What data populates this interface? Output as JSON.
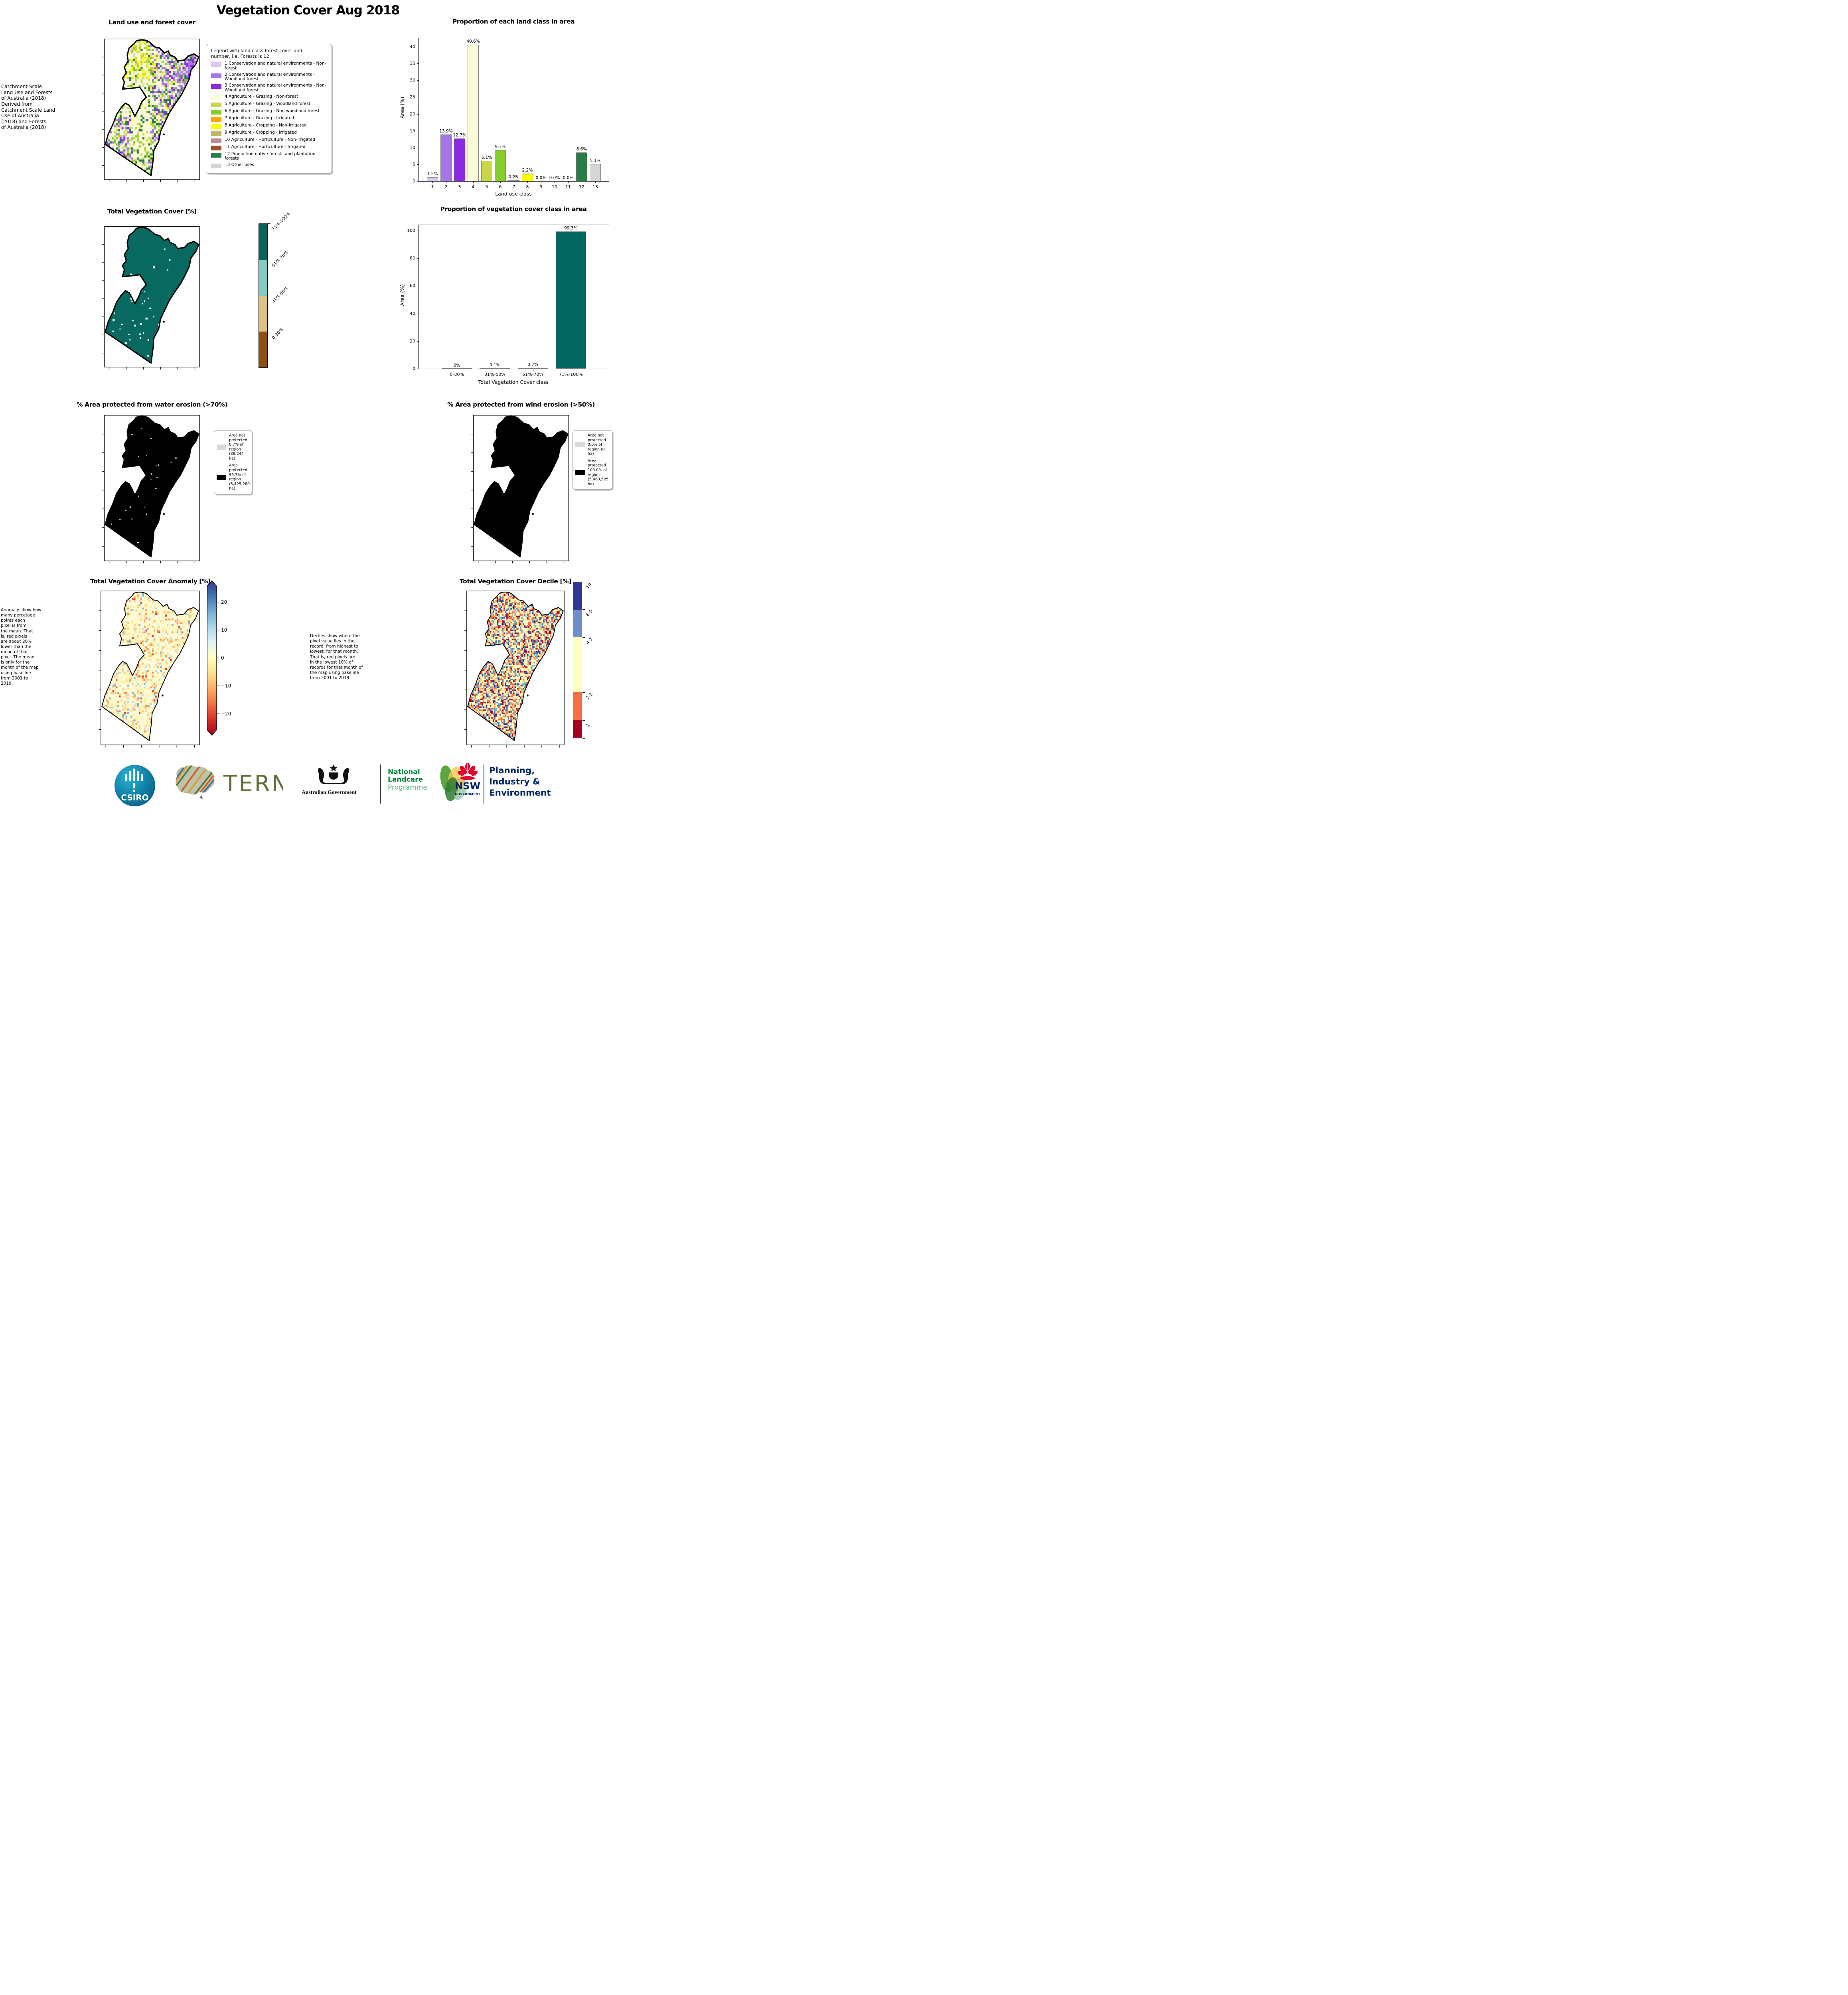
{
  "page_title": "Vegetation Cover Aug 2018",
  "panels": {
    "land_use": {
      "title": "Land use and forest cover",
      "side_note": " Catchment Scale\nLand Use and Forests\nof Australia (2018)\nDerived from\nCatchment Scale Land\nUse of Australia\n(2018) and Forests\nof Australia (2018)",
      "legend_title": "Legend with land class forest cover and\nnumber, i.e. Forests is 12",
      "legend_items": [
        {
          "color": "#dcc7ef",
          "label": "1 Conservation and natural environments - Non-forest"
        },
        {
          "color": "#a875e8",
          "label": "2 Conservation and natural environments - Woodland forest"
        },
        {
          "color": "#8a2be2",
          "label": "3 Conservation and natural environments - Non-Woodland forest"
        },
        {
          "color": "#fbfbd8",
          "label": "4 Agriculture - Grazing - Non-forest"
        },
        {
          "color": "#c9d648",
          "label": "5 Agriculture - Grazing - Woodland forest"
        },
        {
          "color": "#85cd27",
          "label": "6 Agriculture - Grazing - Non-woodland forest"
        },
        {
          "color": "#ffa500",
          "label": "7 Agriculture - Grazing - Irrigated"
        },
        {
          "color": "#ffff00",
          "label": "8 Agriculture - Cropping - Non-irrigated"
        },
        {
          "color": "#bdb76b",
          "label": "9 Agriculture - Cropping - Irrigated"
        },
        {
          "color": "#bc8f8f",
          "label": "10 Agriculture - Horticulture - Non-irrigated"
        },
        {
          "color": "#a0522d",
          "label": "11 Agriculture - Horticulture - Irrigated"
        },
        {
          "color": "#287d46",
          "label": "12 Production native forests and plantation forests"
        },
        {
          "color": "#d6d6d6",
          "label": "13 Other uses"
        }
      ]
    },
    "veg_cover": {
      "title": "Total Vegetation Cover [%]",
      "map_color": "#07695f",
      "colorbar": [
        {
          "label": "71%-100%",
          "color": "#01665e"
        },
        {
          "label": "51%-70%",
          "color": "#80cdc1"
        },
        {
          "label": "31%-50%",
          "color": "#dfc27d"
        },
        {
          "label": "0-30%",
          "color": "#8c510a"
        }
      ]
    },
    "water": {
      "title": "% Area protected from water erosion (>70%)",
      "legend": [
        {
          "color": "#d9d9d9",
          "label": "Area not protected 0.7% of region (38,244 ha)"
        },
        {
          "color": "#000000",
          "label": "Area protected 99.3% of region (5,425,280 ha)"
        }
      ]
    },
    "wind": {
      "title": "% Area protected from wind erosion (>50%)",
      "legend": [
        {
          "color": "#d9d9d9",
          "label": "Area not protected 0.0% of region (0 ha)"
        },
        {
          "color": "#000000",
          "label": "Area protected 100.0% of region (5,463,525 ha)"
        }
      ]
    },
    "anomaly": {
      "title": "Total Vegetation Cover Anomaly [%]",
      "note": "Anomaly show how\nmany percetage\npoints each\npixel is from\nthe mean. That\nis, red pixels\nare about 20%\nlower than the\nmean of that\npixel. The mean\nis only for the\nmonth of the map\nusing baseline\nfrom 2001 to\n2019.",
      "colorbar_ticks": [
        {
          "label": "20",
          "value": 20
        },
        {
          "label": "10",
          "value": 10
        },
        {
          "label": "0",
          "value": 0
        },
        {
          "label": "−10",
          "value": -10
        },
        {
          "label": "−20",
          "value": -20
        }
      ],
      "gradient": [
        "#313695",
        "#4575b4",
        "#74add1",
        "#abd9e9",
        "#e0f3f8",
        "#ffffbf",
        "#fee090",
        "#fdae61",
        "#f46d43",
        "#d73027",
        "#a50026"
      ]
    },
    "decile": {
      "title": "Total Vegetation Cover Decile [%]",
      "note": "Deciles show where the\npixel value lies in the\nrecord, from highest to\nlowest, for that month.\nThat is, red pixels are\nin the lowest 10% of\nrecords for that month of\nthe map using baseline\nfrom 2001 to 2019.",
      "colorbar": [
        {
          "label": "10",
          "color": "#313695",
          "frac": 0.176
        },
        {
          "label": "8-9",
          "color": "#6d8ec8",
          "frac": 0.179
        },
        {
          "label": "4-7",
          "color": "#ffffbf",
          "frac": 0.352
        },
        {
          "label": "2-3",
          "color": "#f46d43",
          "frac": 0.179
        },
        {
          "label": "1",
          "color": "#a50026",
          "frac": 0.114
        }
      ]
    }
  },
  "chart_data": [
    {
      "type": "bar",
      "title": "Proportion of each land class in area",
      "xlabel": "Land use class",
      "ylabel": "Area (%)",
      "categories": [
        "1",
        "2",
        "3",
        "4",
        "5",
        "6",
        "7",
        "8",
        "9",
        "10",
        "11",
        "12",
        "13"
      ],
      "values": [
        1.2,
        13.9,
        12.7,
        40.6,
        6.1,
        9.3,
        0.2,
        2.2,
        0.0,
        0.0,
        0.0,
        8.6,
        5.1
      ],
      "labels": [
        "1.2%",
        "13.9%",
        "12.7%",
        "40.6%",
        "6.1%",
        "9.3%",
        "0.2%",
        "2.2%",
        "0.0%",
        "0.0%",
        "0.0%",
        "8.6%",
        "5.1%"
      ],
      "bar_colors": [
        "#dcc7ef",
        "#a875e8",
        "#8a2be2",
        "#fbfbd8",
        "#c9d648",
        "#85cd27",
        "#ffa500",
        "#ffff00",
        "#bdb76b",
        "#bc8f8f",
        "#a0522d",
        "#287d46",
        "#d6d6d6"
      ],
      "yticks": [
        0,
        5,
        10,
        15,
        20,
        25,
        30,
        35,
        40
      ],
      "ylim": [
        0,
        42.5
      ],
      "grid": false,
      "legend_position": "none"
    },
    {
      "type": "bar",
      "title": "Proportion of vegetation cover class in area",
      "xlabel": "Total Vegetation Cover class",
      "ylabel": "Area (%)",
      "categories": [
        "0-30%",
        "31%-50%",
        "51%-70%",
        "71%-100%"
      ],
      "values": [
        0,
        0.1,
        0.7,
        99.3
      ],
      "labels": [
        "0%",
        "0.1%",
        "0.7%",
        "99.3%"
      ],
      "bar_colors": [
        "#8c510a",
        "#dfc27d",
        "#80cdc1",
        "#01665e"
      ],
      "yticks": [
        0,
        20,
        40,
        60,
        80,
        100
      ],
      "ylim": [
        0,
        104
      ],
      "grid": false,
      "legend_position": "none"
    }
  ],
  "footer": {
    "csiro_label": "CSIRO",
    "csiro_teal": "#0e7fa5",
    "tern_label": "TERN",
    "tern_olive": "#5f7036",
    "aus_gov_label": "Australian Government",
    "nlp_line1": "National",
    "nlp_line2": "Landcare",
    "nlp_line3": "Programme",
    "nlp_green": "#00843d",
    "nlp_light_green": "#58b584",
    "nsw_label": "NSW",
    "nsw_sub_label": "GOVERNMENT",
    "nsw_red": "#e4002b",
    "nsw_navy": "#002664",
    "dept_line1": "Planning,",
    "dept_line2": "Industry &",
    "dept_line3": "Environment"
  }
}
